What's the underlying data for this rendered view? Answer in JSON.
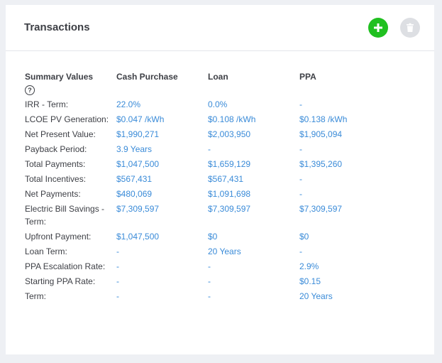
{
  "card": {
    "title": "Transactions"
  },
  "icons": {
    "add": "plus-icon",
    "delete": "trash-icon",
    "help": "question-circle-icon"
  },
  "colors": {
    "add_button": "#20c020",
    "delete_button": "#dddfe3",
    "value_text": "#3a8bd8",
    "label_text": "#3d3f45"
  },
  "summary": {
    "headers": [
      "Summary Values",
      "Cash Purchase",
      "Loan",
      "PPA"
    ],
    "help_glyph": "?",
    "rows": [
      {
        "label": "IRR - Term:",
        "cash": "22.0%",
        "loan": "0.0%",
        "ppa": "-"
      },
      {
        "label": "LCOE PV Generation:",
        "cash": "$0.047 /kWh",
        "loan": "$0.108 /kWh",
        "ppa": "$0.138 /kWh"
      },
      {
        "label": "Net Present Value:",
        "cash": "$1,990,271",
        "loan": "$2,003,950",
        "ppa": "$1,905,094"
      },
      {
        "label": "Payback Period:",
        "cash": "3.9 Years",
        "loan": "-",
        "ppa": "-"
      },
      {
        "label": "Total Payments:",
        "cash": "$1,047,500",
        "loan": "$1,659,129",
        "ppa": "$1,395,260"
      },
      {
        "label": "Total Incentives:",
        "cash": "$567,431",
        "loan": "$567,431",
        "ppa": "-"
      },
      {
        "label": "Net Payments:",
        "cash": "$480,069",
        "loan": "$1,091,698",
        "ppa": "-"
      },
      {
        "label": "Electric Bill Savings - Term:",
        "cash": "$7,309,597",
        "loan": "$7,309,597",
        "ppa": "$7,309,597"
      },
      {
        "label": "Upfront Payment:",
        "cash": "$1,047,500",
        "loan": "$0",
        "ppa": "$0"
      },
      {
        "label": "Loan Term:",
        "cash": "-",
        "loan": "20 Years",
        "ppa": "-"
      },
      {
        "label": "PPA Escalation Rate:",
        "cash": "-",
        "loan": "-",
        "ppa": "2.9%"
      },
      {
        "label": "Starting PPA Rate:",
        "cash": "-",
        "loan": "-",
        "ppa": "$0.15"
      },
      {
        "label": "Term:",
        "cash": "-",
        "loan": "-",
        "ppa": "20 Years"
      }
    ]
  }
}
